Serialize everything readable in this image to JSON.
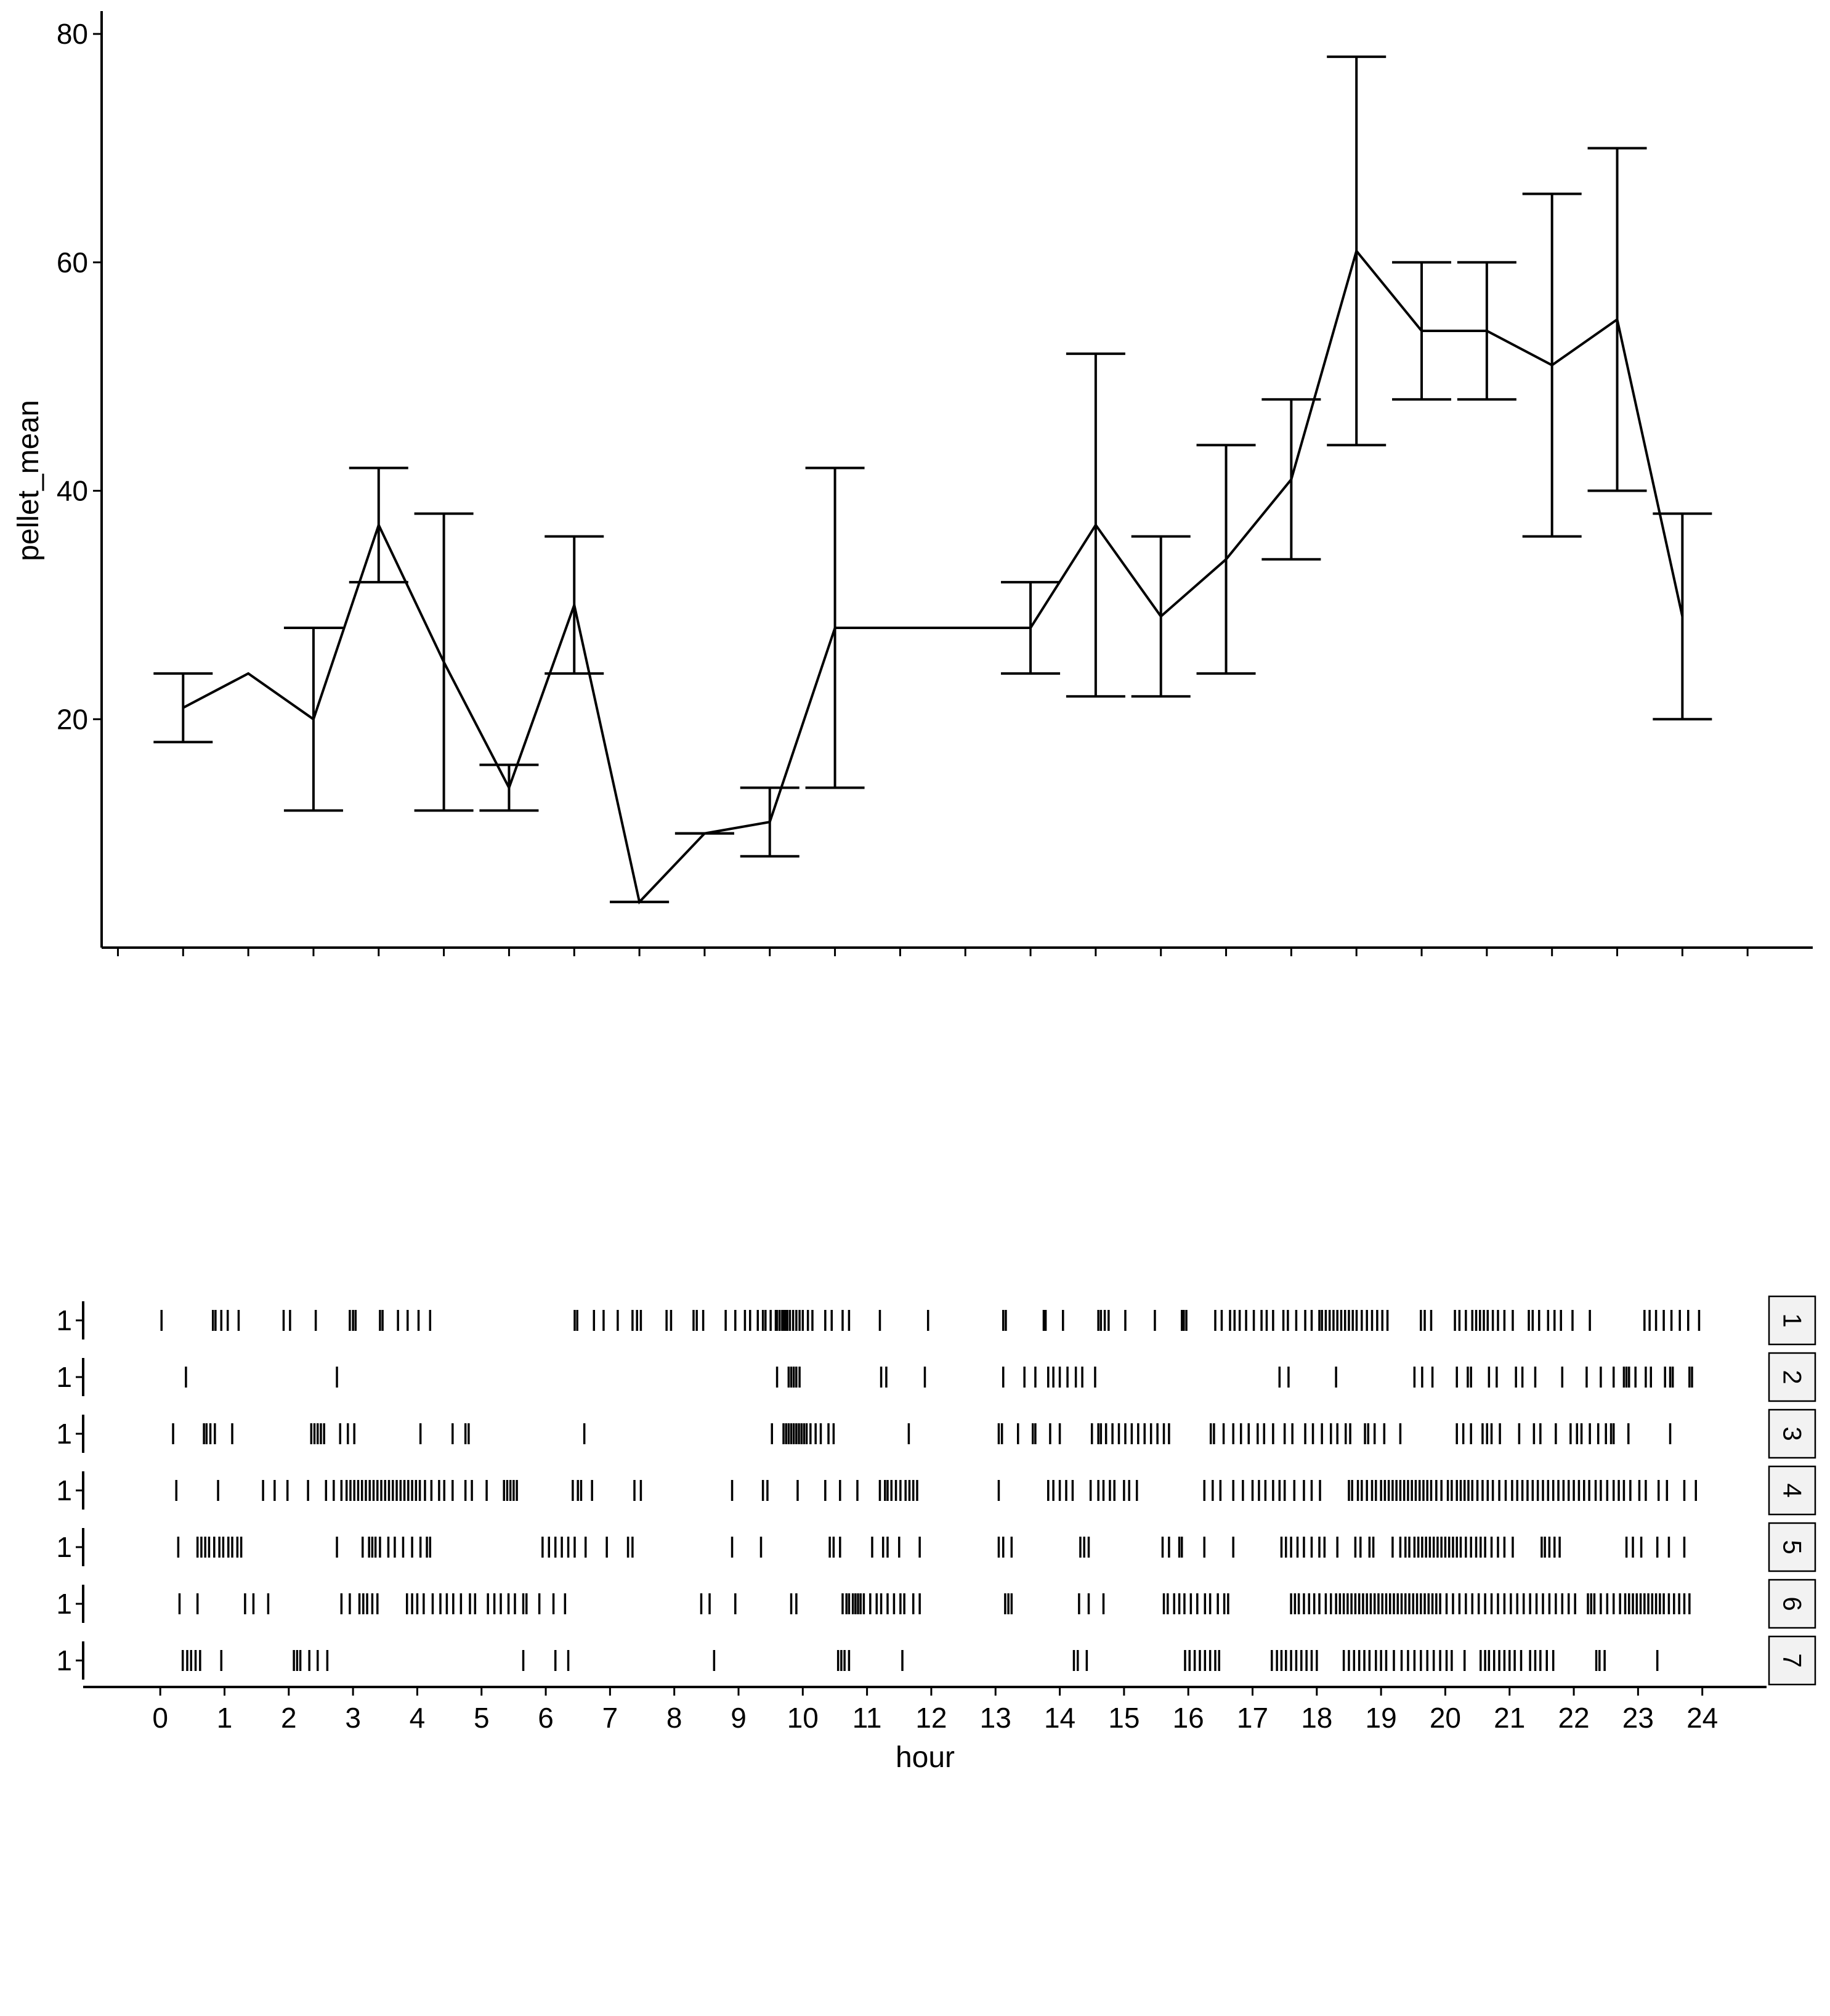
{
  "chart_data": [
    {
      "type": "line",
      "title": "",
      "xlabel": "",
      "ylabel": "pellet_mean",
      "xlim": [
        -1.25,
        25.0
      ],
      "ylim": [
        0,
        82
      ],
      "yticks": [
        20,
        40,
        60,
        80
      ],
      "xticks": [
        -1,
        0,
        1,
        2,
        3,
        4,
        5,
        6,
        7,
        8,
        9,
        10,
        11,
        12,
        13,
        14,
        15,
        16,
        17,
        18,
        19,
        20,
        21,
        22,
        23,
        24
      ],
      "show_x_tick_labels": false,
      "grid": false,
      "error_bar_style": "capped",
      "series": [
        {
          "x": [
            0,
            1,
            2,
            3,
            4,
            5,
            6,
            7,
            8,
            9,
            10,
            11,
            12,
            13,
            14,
            15,
            16,
            17,
            18,
            19,
            20,
            21,
            22,
            23,
            24
          ],
          "y": [
            21,
            24,
            20,
            37,
            25,
            14,
            30,
            4,
            10,
            11,
            28,
            28,
            28,
            28,
            37,
            29,
            34,
            41,
            61,
            54,
            54,
            51,
            55,
            29,
            null
          ],
          "error_low": [
            18,
            null,
            12,
            32,
            12,
            12,
            24,
            4,
            10,
            8,
            14,
            null,
            null,
            24,
            22,
            22,
            24,
            34,
            44,
            48,
            48,
            36,
            40,
            20,
            null
          ],
          "error_high": [
            24,
            null,
            28,
            42,
            38,
            16,
            36,
            4,
            10,
            14,
            42,
            null,
            null,
            32,
            52,
            36,
            44,
            48,
            78,
            60,
            60,
            66,
            70,
            38,
            null
          ]
        }
      ]
    },
    {
      "type": "event-raster",
      "title": "",
      "xlabel": "hour",
      "ylabel": "",
      "xlim": [
        -1.2,
        25.0
      ],
      "xticks": [
        0,
        1,
        2,
        3,
        4,
        5,
        6,
        7,
        8,
        9,
        10,
        11,
        12,
        13,
        14,
        15,
        16,
        17,
        18,
        19,
        20,
        21,
        22,
        23,
        24
      ],
      "xtick_labels": [
        "0",
        "1",
        "2",
        "3",
        "4",
        "5",
        "6",
        "7",
        "8",
        "9",
        "10",
        "11",
        "12",
        "13",
        "14",
        "15",
        "16",
        "17",
        "18",
        "19",
        "20",
        "21",
        "22",
        "23",
        "24"
      ],
      "grid": false,
      "panels": [
        {
          "strip": "1",
          "y_label": "1",
          "events": [
            0.02,
            0.82,
            0.86,
            0.95,
            1.05,
            1.22,
            1.92,
            2.02,
            2.42,
            2.95,
            3.0,
            3.04,
            3.42,
            3.46,
            3.7,
            3.85,
            4.02,
            4.2,
            6.45,
            6.49,
            6.75,
            6.9,
            7.12,
            7.35,
            7.42,
            7.48,
            7.88,
            7.95,
            8.3,
            8.35,
            8.45,
            8.8,
            8.95,
            9.1,
            9.18,
            9.3,
            9.38,
            9.42,
            9.5,
            9.58,
            9.6,
            9.64,
            9.68,
            9.7,
            9.73,
            9.76,
            9.8,
            9.85,
            9.9,
            9.95,
            10.0,
            10.08,
            10.15,
            10.35,
            10.45,
            10.62,
            10.72,
            11.2,
            11.95,
            13.12,
            13.16,
            13.75,
            13.78,
            14.05,
            14.6,
            14.64,
            14.7,
            14.76,
            15.02,
            15.48,
            15.9,
            15.93,
            15.97,
            16.42,
            16.52,
            16.65,
            16.72,
            16.8,
            16.9,
            17.02,
            17.14,
            17.22,
            17.32,
            17.48,
            17.55,
            17.68,
            17.82,
            17.92,
            18.04,
            18.08,
            18.14,
            18.2,
            18.26,
            18.32,
            18.38,
            18.44,
            18.5,
            18.56,
            18.62,
            18.7,
            18.78,
            18.86,
            18.94,
            19.02,
            19.1,
            19.62,
            19.68,
            19.78,
            20.15,
            20.22,
            20.32,
            20.42,
            20.48,
            20.54,
            20.6,
            20.66,
            20.74,
            20.82,
            20.92,
            21.05,
            21.3,
            21.36,
            21.46,
            21.6,
            21.7,
            21.8,
            21.98,
            22.25,
            23.1,
            23.18,
            23.28,
            23.4,
            23.52,
            23.65,
            23.78,
            23.95
          ]
        },
        {
          "strip": "2",
          "y_label": "1",
          "events": [
            0.4,
            2.75,
            9.6,
            9.78,
            9.82,
            9.86,
            9.9,
            9.95,
            11.22,
            11.3,
            11.9,
            13.12,
            13.45,
            13.62,
            13.82,
            13.9,
            14.0,
            14.12,
            14.25,
            14.35,
            14.55,
            17.42,
            17.56,
            18.3,
            19.52,
            19.64,
            19.8,
            20.18,
            20.35,
            20.4,
            20.68,
            20.8,
            21.1,
            21.2,
            21.4,
            21.82,
            22.2,
            22.42,
            22.62,
            22.78,
            22.82,
            22.86,
            22.96,
            23.12,
            23.2,
            23.42,
            23.5,
            23.54,
            23.8,
            23.84
          ]
        },
        {
          "strip": "3",
          "y_label": "1",
          "events": [
            0.2,
            0.68,
            0.72,
            0.78,
            0.85,
            1.12,
            2.35,
            2.4,
            2.45,
            2.5,
            2.55,
            2.8,
            2.92,
            3.02,
            4.05,
            4.55,
            4.75,
            4.8,
            6.6,
            9.52,
            9.7,
            9.74,
            9.78,
            9.82,
            9.86,
            9.9,
            9.94,
            9.98,
            10.02,
            10.06,
            10.12,
            10.2,
            10.28,
            10.4,
            10.48,
            11.65,
            13.05,
            13.1,
            13.35,
            13.58,
            13.62,
            13.85,
            14.0,
            14.5,
            14.6,
            14.64,
            14.72,
            14.82,
            14.92,
            15.02,
            15.12,
            15.22,
            15.32,
            15.42,
            15.52,
            15.62,
            15.7,
            16.35,
            16.4,
            16.55,
            16.7,
            16.82,
            16.94,
            17.08,
            17.18,
            17.32,
            17.5,
            17.62,
            17.82,
            17.94,
            18.08,
            18.22,
            18.32,
            18.45,
            18.52,
            18.75,
            18.8,
            18.9,
            19.05,
            19.3,
            20.18,
            20.28,
            20.4,
            20.58,
            20.65,
            20.72,
            20.85,
            21.15,
            21.38,
            21.48,
            21.72,
            21.95,
            22.05,
            22.12,
            22.25,
            22.38,
            22.5,
            22.58,
            22.62,
            22.85,
            23.5
          ]
        },
        {
          "strip": "4",
          "y_label": "1",
          "events": [
            0.25,
            0.9,
            1.6,
            1.78,
            1.98,
            2.3,
            2.58,
            2.7,
            2.82,
            2.9,
            2.96,
            3.02,
            3.08,
            3.14,
            3.2,
            3.26,
            3.32,
            3.38,
            3.44,
            3.5,
            3.56,
            3.62,
            3.68,
            3.74,
            3.8,
            3.86,
            3.92,
            3.98,
            4.04,
            4.12,
            4.22,
            4.34,
            4.42,
            4.55,
            4.75,
            4.85,
            5.08,
            5.35,
            5.4,
            5.45,
            5.5,
            5.55,
            6.42,
            6.5,
            6.55,
            6.72,
            7.38,
            7.48,
            8.9,
            9.38,
            9.45,
            9.92,
            10.35,
            10.58,
            10.85,
            11.2,
            11.28,
            11.32,
            11.38,
            11.45,
            11.52,
            11.6,
            11.66,
            11.72,
            11.78,
            13.05,
            13.82,
            13.9,
            14.0,
            14.1,
            14.2,
            14.48,
            14.6,
            14.68,
            14.78,
            14.85,
            15.0,
            15.08,
            15.2,
            16.25,
            16.38,
            16.5,
            16.7,
            16.85,
            17.0,
            17.1,
            17.2,
            17.32,
            17.42,
            17.5,
            17.65,
            17.8,
            17.92,
            18.05,
            18.5,
            18.55,
            18.64,
            18.7,
            18.78,
            18.86,
            18.92,
            19.0,
            19.06,
            19.12,
            19.18,
            19.24,
            19.3,
            19.36,
            19.42,
            19.48,
            19.54,
            19.6,
            19.66,
            19.72,
            19.78,
            19.86,
            19.94,
            20.04,
            20.1,
            20.18,
            20.24,
            20.3,
            20.36,
            20.42,
            20.5,
            20.58,
            20.66,
            20.74,
            20.84,
            20.94,
            21.04,
            21.12,
            21.2,
            21.28,
            21.36,
            21.44,
            21.52,
            21.6,
            21.68,
            21.76,
            21.84,
            21.92,
            22.0,
            22.08,
            22.16,
            22.24,
            22.34,
            22.42,
            22.52,
            22.62,
            22.7,
            22.78,
            22.88,
            23.02,
            23.12,
            23.32,
            23.45,
            23.72,
            23.9
          ]
        },
        {
          "strip": "5",
          "y_label": "1",
          "events": [
            0.28,
            0.58,
            0.64,
            0.7,
            0.76,
            0.84,
            0.92,
            0.98,
            1.06,
            1.12,
            1.2,
            1.26,
            2.75,
            3.15,
            3.25,
            3.3,
            3.35,
            3.42,
            3.55,
            3.65,
            3.78,
            3.92,
            4.05,
            4.15,
            4.2,
            5.95,
            6.05,
            6.15,
            6.25,
            6.35,
            6.45,
            6.62,
            6.95,
            7.28,
            7.35,
            8.9,
            9.35,
            10.42,
            10.48,
            10.58,
            11.08,
            11.25,
            11.32,
            11.5,
            11.82,
            13.05,
            13.12,
            13.25,
            14.32,
            14.38,
            14.45,
            15.6,
            15.7,
            15.86,
            15.9,
            16.25,
            16.7,
            17.45,
            17.52,
            17.6,
            17.7,
            17.8,
            17.92,
            18.04,
            18.12,
            18.32,
            18.6,
            18.68,
            18.82,
            18.88,
            19.18,
            19.3,
            19.38,
            19.44,
            19.52,
            19.58,
            19.64,
            19.7,
            19.76,
            19.82,
            19.88,
            19.94,
            20.0,
            20.06,
            20.12,
            20.18,
            20.24,
            20.32,
            20.4,
            20.48,
            20.55,
            20.62,
            20.72,
            20.82,
            20.92,
            21.05,
            21.5,
            21.55,
            21.62,
            21.7,
            21.78,
            22.82,
            22.92,
            23.05,
            23.3,
            23.48,
            23.72
          ]
        },
        {
          "strip": "6",
          "y_label": "1",
          "events": [
            0.3,
            0.58,
            1.32,
            1.45,
            1.68,
            2.82,
            2.95,
            3.1,
            3.16,
            3.22,
            3.3,
            3.38,
            3.84,
            3.92,
            4.0,
            4.1,
            4.24,
            4.36,
            4.46,
            4.56,
            4.68,
            4.82,
            4.9,
            5.1,
            5.2,
            5.3,
            5.42,
            5.52,
            5.65,
            5.7,
            5.9,
            6.12,
            6.3,
            8.42,
            8.55,
            8.95,
            9.82,
            9.9,
            10.62,
            10.68,
            10.72,
            10.78,
            10.82,
            10.86,
            10.9,
            10.95,
            11.05,
            11.15,
            11.22,
            11.32,
            11.42,
            11.52,
            11.58,
            11.72,
            11.82,
            13.15,
            13.2,
            13.25,
            14.3,
            14.45,
            14.68,
            15.62,
            15.68,
            15.78,
            15.86,
            15.94,
            16.04,
            16.14,
            16.26,
            16.34,
            16.46,
            16.56,
            16.62,
            17.6,
            17.66,
            17.72,
            17.8,
            17.88,
            17.96,
            18.04,
            18.14,
            18.22,
            18.3,
            18.36,
            18.42,
            18.48,
            18.54,
            18.6,
            18.66,
            18.72,
            18.78,
            18.84,
            18.9,
            18.96,
            19.02,
            19.08,
            19.14,
            19.2,
            19.26,
            19.32,
            19.38,
            19.44,
            19.5,
            19.56,
            19.62,
            19.68,
            19.74,
            19.8,
            19.86,
            19.92,
            20.02,
            20.12,
            20.22,
            20.32,
            20.42,
            20.52,
            20.62,
            20.72,
            20.82,
            20.92,
            21.02,
            21.12,
            21.22,
            21.32,
            21.42,
            21.52,
            21.62,
            21.72,
            21.82,
            21.92,
            22.02,
            22.22,
            22.27,
            22.32,
            22.42,
            22.52,
            22.62,
            22.72,
            22.8,
            22.86,
            22.92,
            22.98,
            23.04,
            23.1,
            23.16,
            23.22,
            23.28,
            23.34,
            23.4,
            23.48,
            23.56,
            23.64,
            23.72,
            23.8
          ]
        },
        {
          "strip": "7",
          "y_label": "1",
          "events": [
            0.35,
            0.42,
            0.48,
            0.55,
            0.62,
            0.95,
            2.08,
            2.13,
            2.18,
            2.32,
            2.45,
            2.6,
            5.65,
            6.15,
            6.35,
            8.62,
            10.55,
            10.6,
            10.65,
            10.72,
            11.55,
            14.22,
            14.28,
            14.42,
            15.95,
            16.02,
            16.1,
            16.18,
            16.26,
            16.34,
            16.42,
            16.48,
            17.3,
            17.38,
            17.45,
            17.52,
            17.6,
            17.68,
            17.76,
            17.84,
            17.92,
            18.0,
            18.42,
            18.5,
            18.58,
            18.66,
            18.74,
            18.82,
            18.92,
            19.0,
            19.08,
            19.2,
            19.32,
            19.42,
            19.52,
            19.62,
            19.72,
            19.82,
            19.92,
            20.02,
            20.1,
            20.3,
            20.55,
            20.62,
            20.68,
            20.76,
            20.84,
            20.92,
            21.0,
            21.08,
            21.18,
            21.32,
            21.4,
            21.48,
            21.58,
            21.68,
            22.35,
            22.4,
            22.48,
            23.3
          ]
        }
      ]
    }
  ]
}
